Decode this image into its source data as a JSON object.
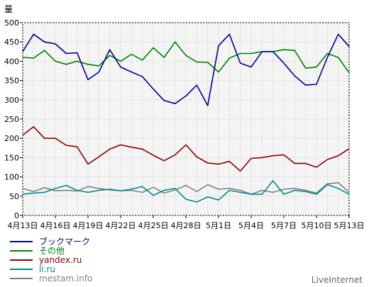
{
  "brand": "LiveInternet",
  "chart_data": {
    "type": "line",
    "ylabel": "量",
    "ylim": [
      0,
      500
    ],
    "yticks": [
      0,
      50,
      100,
      150,
      200,
      250,
      300,
      350,
      400,
      450,
      500
    ],
    "xtick_labels": [
      "4月13日",
      "4月16日",
      "4月19日",
      "4月22日",
      "4月25日",
      "4月28日",
      "5月1日",
      "5月4日",
      "5月7日",
      "5月10日",
      "5月13日"
    ],
    "grid": true,
    "legend": "bottom-left",
    "series": [
      {
        "name": "ブックマーク",
        "color": "#00008b",
        "values": [
          425,
          470,
          450,
          445,
          420,
          422,
          352,
          372,
          430,
          385,
          372,
          360,
          328,
          298,
          290,
          310,
          338,
          285,
          440,
          470,
          395,
          385,
          425,
          425,
          395,
          362,
          338,
          340,
          410,
          470,
          438
        ]
      },
      {
        "name": "その他",
        "color": "#008000",
        "values": [
          410,
          408,
          428,
          400,
          392,
          400,
          392,
          388,
          415,
          400,
          418,
          403,
          435,
          410,
          450,
          415,
          398,
          397,
          372,
          408,
          420,
          420,
          425,
          425,
          430,
          428,
          382,
          385,
          420,
          410,
          370
        ]
      },
      {
        "name": "yandex.ru",
        "color": "#8b0000",
        "values": [
          208,
          230,
          200,
          200,
          182,
          178,
          133,
          152,
          172,
          183,
          177,
          172,
          156,
          142,
          157,
          183,
          152,
          136,
          133,
          140,
          115,
          148,
          150,
          155,
          157,
          135,
          135,
          125,
          145,
          155,
          173
        ]
      },
      {
        "name": "li.ru",
        "color": "#008b8b",
        "values": [
          55,
          58,
          60,
          70,
          78,
          65,
          60,
          65,
          68,
          64,
          68,
          75,
          52,
          65,
          70,
          42,
          35,
          48,
          40,
          65,
          60,
          55,
          55,
          90,
          55,
          65,
          62,
          55,
          80,
          70,
          55
        ]
      },
      {
        "name": "mestam.info",
        "color": "#808080",
        "values": [
          70,
          62,
          72,
          64,
          65,
          63,
          75,
          70,
          66,
          64,
          65,
          60,
          73,
          58,
          66,
          78,
          62,
          80,
          68,
          70,
          65,
          55,
          65,
          60,
          68,
          70,
          65,
          58,
          82,
          85,
          60
        ]
      }
    ]
  }
}
